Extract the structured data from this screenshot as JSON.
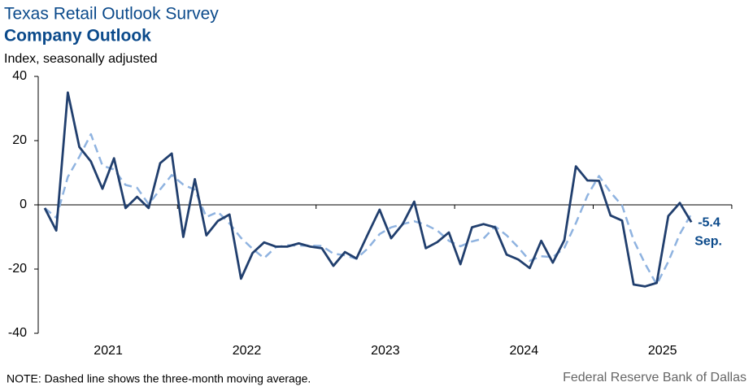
{
  "chart_data": {
    "type": "line",
    "title": "Texas Retail Outlook Survey",
    "subtitle": "Company Outlook",
    "y_label": "Index, seasonally adjusted",
    "note": "NOTE: Dashed line shows the three-month moving average.",
    "source": "Federal Reserve Bank of Dallas",
    "annotation": "Sep.",
    "categories": [
      null,
      null,
      null,
      null,
      null,
      "2021",
      null,
      null,
      null,
      null,
      null,
      null,
      null,
      null,
      null,
      null,
      null,
      "2022",
      null,
      null,
      null,
      null,
      null,
      null,
      null,
      null,
      null,
      null,
      null,
      "2023",
      null,
      null,
      null,
      null,
      null,
      null,
      null,
      null,
      null,
      null,
      null,
      "2024",
      null,
      null,
      null,
      null,
      null,
      null,
      null,
      null,
      null,
      null,
      null,
      "2025",
      null,
      null,
      null
    ],
    "series": [
      {
        "color": "#213f6e",
        "dashed": false,
        "labeled_last": true,
        "values": [
          -1,
          -8,
          35,
          18,
          13.5,
          5,
          14.5,
          -1,
          2.5,
          -1,
          13,
          16,
          -10,
          8,
          -9.5,
          -5,
          -3,
          -23,
          -15,
          -11.7,
          -13,
          -13,
          -12,
          -13,
          -13.5,
          -19,
          -14.7,
          -16.7,
          -9,
          -1.5,
          -10.4,
          -6,
          1,
          -13.5,
          -11.6,
          -8.6,
          -18.5,
          -7,
          -6,
          -7,
          -15.5,
          -17,
          -19.7,
          -11.2,
          -18,
          -11,
          12,
          7.6,
          7.5,
          -3.3,
          -4.9,
          -24.8,
          -25.4,
          -24.3,
          -3.5,
          0.6,
          -5.4
        ]
      },
      {
        "color": "#8fb3e0",
        "dashed": true,
        "labeled_last": false,
        "values": [
          -1,
          -4,
          8.7,
          15,
          22,
          12.2,
          11,
          6.2,
          5.3,
          0.2,
          4.8,
          9.3,
          6.3,
          4.7,
          -3.8,
          -2.2,
          -5.8,
          -10.3,
          -13.7,
          -16.6,
          -13.2,
          -12.6,
          -12.7,
          -12.7,
          -12.8,
          -15.2,
          -15.7,
          -16.8,
          -13.5,
          -9.1,
          -7,
          -6,
          -5.1,
          -6.2,
          -8,
          -11.2,
          -12.9,
          -11.4,
          -10.5,
          -6.7,
          -9.5,
          -13.2,
          -17.4,
          -16,
          -16.3,
          -13.4,
          -5.7,
          2.9,
          9,
          3.9,
          -0.2,
          -11,
          -18.4,
          -24.8,
          -17.7,
          -9.1,
          -2.8
        ]
      }
    ],
    "ylim": [
      -40,
      40
    ],
    "yticks": [
      -40,
      -20,
      0,
      20,
      40
    ]
  }
}
